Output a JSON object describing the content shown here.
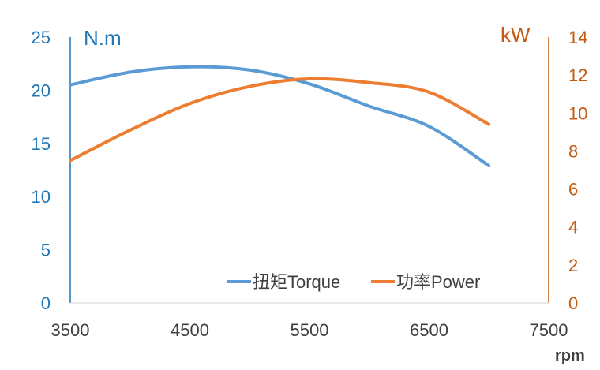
{
  "chart_data": {
    "type": "line",
    "xlabel": "rpm",
    "x": [
      3500,
      4000,
      4500,
      5000,
      5500,
      6000,
      6500,
      7000
    ],
    "xlim": [
      3500,
      7500
    ],
    "xticks": [
      "3500",
      "4500",
      "5500",
      "6500",
      "7500"
    ],
    "y_left": {
      "label": "N.m",
      "lim": [
        0,
        25
      ],
      "ticks": [
        "0",
        "5",
        "10",
        "15",
        "20",
        "25"
      ],
      "color": "#1f77b4"
    },
    "y_right": {
      "label": "kW",
      "lim": [
        0,
        14
      ],
      "ticks": [
        "0",
        "2",
        "4",
        "6",
        "8",
        "10",
        "12",
        "14"
      ],
      "color": "#c55a11"
    },
    "series": [
      {
        "name": "扭矩Torque",
        "axis": "left",
        "color": "#5b9bd5",
        "values": [
          20.5,
          21.7,
          22.2,
          21.9,
          20.6,
          18.5,
          16.6,
          12.9
        ]
      },
      {
        "name": "功率Power",
        "axis": "right",
        "color": "#ed7d31",
        "values": [
          7.5,
          9.1,
          10.5,
          11.4,
          11.8,
          11.6,
          11.1,
          9.4
        ]
      }
    ],
    "grid": false,
    "legend": "bottom-right"
  }
}
